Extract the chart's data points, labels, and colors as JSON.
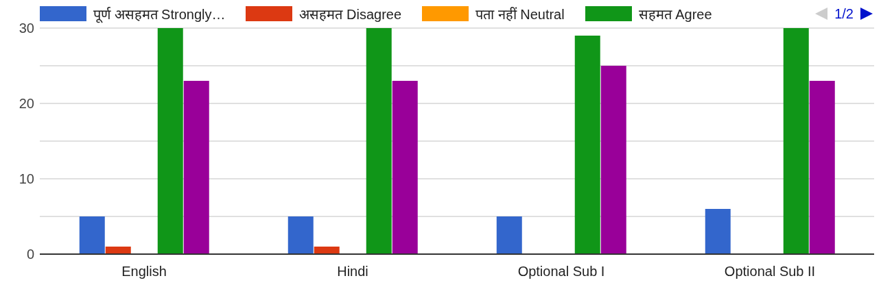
{
  "chart_data": {
    "type": "bar",
    "categories": [
      "English",
      "Hindi",
      "Optional Sub I",
      "Optional Sub II"
    ],
    "series": [
      {
        "name": "पूर्ण असहमत Strongly…",
        "color": "#3366cc",
        "values": [
          5,
          5,
          5,
          6
        ]
      },
      {
        "name": "असहमत Disagree",
        "color": "#dc3912",
        "values": [
          1,
          1,
          0,
          0
        ]
      },
      {
        "name": "पता नहीं Neutral",
        "color": "#ff9900",
        "values": [
          0,
          0,
          0,
          0
        ]
      },
      {
        "name": "सहमत Agree",
        "color": "#109618",
        "values": [
          30,
          30,
          29,
          30
        ]
      },
      {
        "color": "#990099",
        "values": [
          23,
          23,
          25,
          23
        ]
      }
    ],
    "ylim": [
      0,
      30
    ],
    "yticks": [
      0,
      {
        "value": 5,
        "label": null
      },
      10,
      {
        "value": 15,
        "label": null
      },
      20,
      {
        "value": 25,
        "label": null
      },
      30
    ],
    "grid": "y",
    "legend": "top",
    "annotations": [
      "1/2"
    ]
  }
}
